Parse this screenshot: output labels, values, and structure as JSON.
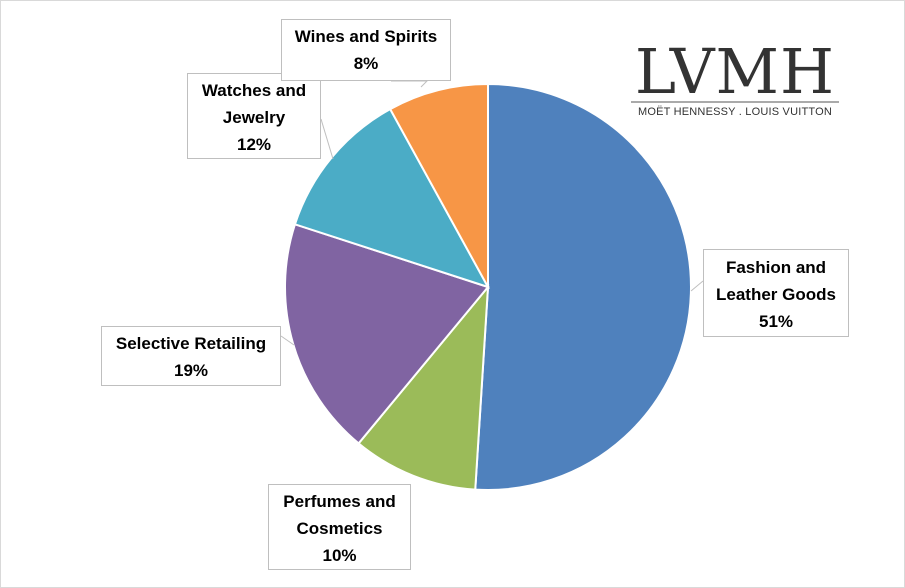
{
  "chart_data": {
    "type": "pie",
    "title": "",
    "slices": [
      {
        "label_lines": [
          "Fashion and",
          "Leather Goods"
        ],
        "label": "Fashion and Leather Goods",
        "value": 51,
        "value_label": "51%",
        "color": "#4F81BD"
      },
      {
        "label_lines": [
          "Perfumes and",
          "Cosmetics"
        ],
        "label": "Perfumes and Cosmetics",
        "value": 10,
        "value_label": "10%",
        "color": "#9BBB59"
      },
      {
        "label_lines": [
          "Selective Retailing"
        ],
        "label": "Selective Retailing",
        "value": 19,
        "value_label": "19%",
        "color": "#8064A2"
      },
      {
        "label_lines": [
          "Watches and",
          "Jewelry"
        ],
        "label": "Watches and Jewelry",
        "value": 12,
        "value_label": "12%",
        "color": "#4BACC6"
      },
      {
        "label_lines": [
          "Wines and Spirits"
        ],
        "label": "Wines and Spirits",
        "value": 8,
        "value_label": "8%",
        "color": "#F79646"
      }
    ],
    "start_angle_deg": 0,
    "direction": "clockwise",
    "legend": "none",
    "data_labels": "callouts"
  },
  "logo": {
    "word": "LVMH",
    "tagline": "MOËT HENNESSY . LOUIS VUITTON"
  }
}
